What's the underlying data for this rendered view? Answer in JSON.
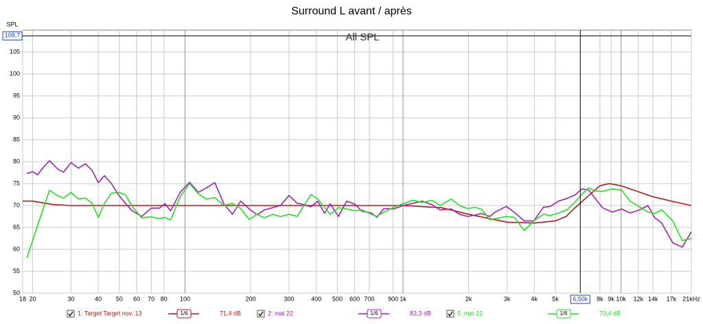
{
  "chart_data": {
    "type": "line",
    "title": "Surround L avant / après",
    "annotation": "All SPL",
    "y_label": "SPL",
    "log_x": true,
    "grid": true,
    "xlim": [
      18,
      21000
    ],
    "ylim": [
      50,
      110
    ],
    "yticks": [
      50,
      55,
      60,
      65,
      70,
      75,
      80,
      85,
      90,
      95,
      100,
      105
    ],
    "xticks": [
      18,
      20,
      30,
      40,
      50,
      60,
      70,
      80,
      100,
      200,
      300,
      400,
      500,
      600,
      700,
      900,
      {
        "value": 1000,
        "label": "1k"
      },
      {
        "value": 2000,
        "label": "2k"
      },
      {
        "value": 3000,
        "label": "3k"
      },
      {
        "value": 4000,
        "label": "4k"
      },
      {
        "value": 5000,
        "label": "5k"
      },
      {
        "value": 8000,
        "label": "8k"
      },
      {
        "value": 9000,
        "label": "9k"
      },
      {
        "value": 10000,
        "label": "10k"
      },
      {
        "value": 12000,
        "label": "12k"
      },
      {
        "value": 14000,
        "label": "14k"
      },
      {
        "value": 17000,
        "label": "17k"
      },
      {
        "value": 21000,
        "label": "21kHz"
      }
    ],
    "cursor": {
      "x": {
        "value": 6500,
        "label": "6,50k"
      },
      "y": {
        "value": 108.7,
        "label": "108,7"
      }
    },
    "series": [
      {
        "name": "1: Target Target nov. 13",
        "color": "#b01a1a",
        "smoothing": "1/6",
        "level": "71,4 dB",
        "x": [
          18,
          20,
          25,
          30,
          100,
          1000,
          1500,
          2000,
          2500,
          3000,
          4000,
          5000,
          5600,
          6000,
          7000,
          8000,
          8800,
          10000,
          14000,
          17000,
          21000
        ],
        "values": [
          71,
          71,
          70.2,
          70,
          70,
          70,
          69.5,
          68,
          67,
          66.2,
          66,
          66.5,
          67.5,
          69,
          72,
          74.5,
          75,
          74.5,
          72,
          71,
          70
        ]
      },
      {
        "name": "2: mai 22",
        "color": "#a020b0",
        "smoothing": "1/6",
        "level": "83,3 dB",
        "x": [
          18.8,
          20,
          21.1,
          22.2,
          23.9,
          26.1,
          27.7,
          30,
          32.4,
          34.9,
          37.5,
          40,
          42.7,
          46,
          49.4,
          53.2,
          57.2,
          63.3,
          70,
          76.4,
          81,
          85.9,
          95,
          105,
          115,
          125,
          137,
          151,
          165,
          180,
          197,
          214,
          231,
          252,
          274,
          300,
          327,
          346,
          378,
          406,
          437,
          463,
          505,
          551,
          601,
          647,
          716,
          759,
          816,
          903,
          1000,
          1107,
          1226,
          1357,
          1480,
          1663,
          1814,
          1980,
          2128,
          2289,
          2497,
          2647,
          2973,
          3243,
          3592,
          3976,
          4401,
          4733,
          5164,
          5634,
          6147,
          6611,
          7108,
          7642,
          8218,
          9100,
          10070,
          10990,
          12170,
          13270,
          14270,
          15350,
          17250,
          19090,
          21000
        ],
        "values": [
          77.3,
          77.7,
          77,
          78.5,
          80.2,
          78.3,
          77.6,
          79.8,
          78.5,
          79.5,
          78,
          75.2,
          76.8,
          75,
          72.5,
          70.5,
          68.8,
          67.5,
          69.4,
          69.4,
          70.4,
          68.8,
          73,
          75.3,
          73,
          74,
          75.2,
          70.3,
          68,
          71,
          69.2,
          67.9,
          69,
          69.5,
          70,
          72.3,
          70.5,
          70.3,
          69.7,
          71,
          68.2,
          70.4,
          67.5,
          71,
          70.3,
          68.7,
          68.3,
          67.3,
          69.3,
          69.2,
          70,
          70.5,
          71,
          70.2,
          69,
          69.2,
          68,
          67.5,
          67.8,
          68.2,
          67.5,
          68.5,
          69.8,
          68.4,
          66.5,
          66.5,
          69.6,
          69.8,
          71,
          71.6,
          72.4,
          73.8,
          73.5,
          71.5,
          69.5,
          68.5,
          69.2,
          68.3,
          69,
          70,
          67.2,
          66,
          61.5,
          60.5,
          64
        ]
      },
      {
        "name": "5. mai 22",
        "color": "#22e022",
        "smoothing": "1/6",
        "level": "73,4 dB",
        "x": [
          18.8,
          20,
          21.1,
          22.2,
          23.9,
          26.1,
          27.7,
          30,
          32.4,
          34.9,
          37.5,
          40,
          42.7,
          46,
          49.4,
          53.2,
          57.2,
          63.3,
          70,
          76.4,
          81,
          85.9,
          95,
          105,
          115,
          125,
          137,
          151,
          165,
          180,
          197,
          214,
          231,
          252,
          274,
          300,
          327,
          346,
          378,
          406,
          437,
          463,
          505,
          551,
          601,
          647,
          716,
          759,
          816,
          903,
          1000,
          1107,
          1226,
          1357,
          1480,
          1663,
          1814,
          1980,
          2128,
          2289,
          2497,
          2647,
          2973,
          3243,
          3592,
          3976,
          4401,
          4733,
          5164,
          5634,
          6147,
          6611,
          7108,
          7642,
          8218,
          9100,
          10070,
          10990,
          12170,
          13270,
          14270,
          15350,
          17250,
          19090,
          21000
        ],
        "values": [
          58,
          62,
          65.5,
          68.8,
          73.5,
          72.2,
          71.7,
          73,
          71.5,
          71.7,
          70.5,
          67.3,
          70.5,
          72.8,
          73,
          72.5,
          69.8,
          67.2,
          67.4,
          67,
          67.3,
          66.7,
          72,
          75,
          72.7,
          71.5,
          71.8,
          70,
          70.5,
          69.3,
          66.8,
          68,
          67.2,
          68,
          67.5,
          68,
          67.5,
          69.5,
          72.5,
          71.5,
          69.5,
          68,
          69.5,
          69.2,
          68.8,
          69,
          68,
          67.5,
          68.5,
          69.6,
          70.4,
          71.2,
          70.7,
          71.2,
          70,
          71.5,
          70,
          69.3,
          69.6,
          69.2,
          66.8,
          67,
          67.5,
          67.3,
          64.3,
          66.5,
          68,
          67.7,
          68.3,
          69,
          70.8,
          72.6,
          74,
          73.3,
          73.2,
          73.8,
          73.5,
          71,
          69.7,
          68.5,
          68.2,
          69,
          66.5,
          62,
          62.5
        ]
      }
    ]
  }
}
